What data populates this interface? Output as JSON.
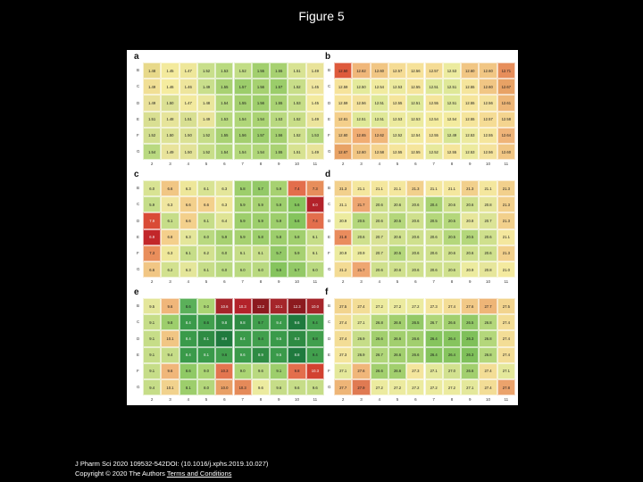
{
  "slide": {
    "title": "Figure 5",
    "citation": "J Pharm Sci 2020 109532-542DOI: (10.1016/j.xphs.2019.10.027)",
    "copyright": "Copyright © 2020 The Authors",
    "terms_link": "Terms and Conditions"
  },
  "chart_data": [
    {
      "type": "heatmap",
      "panel": "a",
      "rows": [
        "B",
        "C",
        "D",
        "E",
        "F",
        "G"
      ],
      "columns": [
        "2",
        "3",
        "4",
        "5",
        "6",
        "7",
        "8",
        "9",
        "10",
        "11"
      ],
      "values": [
        [
          "1.48",
          "1.45",
          "1.47",
          "1.52",
          "1.53",
          "1.52",
          "1.55",
          "1.55",
          "1.51",
          "1.49"
        ],
        [
          "1.49",
          "1.46",
          "1.46",
          "1.49",
          "1.55",
          "1.57",
          "1.56",
          "1.57",
          "1.52",
          "1.45"
        ],
        [
          "1.49",
          "1.50",
          "1.47",
          "1.48",
          "1.54",
          "1.55",
          "1.56",
          "1.55",
          "1.53",
          "1.45"
        ],
        [
          "1.51",
          "1.48",
          "1.51",
          "1.49",
          "1.53",
          "1.54",
          "1.54",
          "1.53",
          "1.52",
          "1.49"
        ],
        [
          "1.52",
          "1.50",
          "1.50",
          "1.52",
          "1.55",
          "1.56",
          "1.57",
          "1.56",
          "1.52",
          "1.53"
        ],
        [
          "1.54",
          "1.49",
          "1.50",
          "1.52",
          "1.54",
          "1.54",
          "1.54",
          "1.55",
          "1.51",
          "1.49"
        ]
      ],
      "colors": [
        [
          "#e8d98a",
          "#f3ea9d",
          "#eee79a",
          "#c8df8b",
          "#b9da7f",
          "#c2dd86",
          "#a2cf6e",
          "#a7d171",
          "#d8e393",
          "#e9e39a"
        ],
        [
          "#f1df95",
          "#f5ec9f",
          "#eee59c",
          "#c9df8c",
          "#a8d172",
          "#9ccd6b",
          "#a6d171",
          "#9bcd6a",
          "#c8de89",
          "#f0e6a0"
        ],
        [
          "#e9e19a",
          "#dbe094",
          "#f2e99e",
          "#e9e69c",
          "#b6d87d",
          "#a4cf6f",
          "#9fce6c",
          "#a9d273",
          "#c6dd87",
          "#f3ea9f"
        ],
        [
          "#d9df92",
          "#e6e49a",
          "#d8df92",
          "#e9e49b",
          "#b8d97f",
          "#b0d679",
          "#aad373",
          "#b9d980",
          "#c9de88",
          "#ebe49c"
        ],
        [
          "#d2de8e",
          "#dde295",
          "#dbe194",
          "#c6dd88",
          "#a9d273",
          "#a4cf6f",
          "#9ccd6b",
          "#a5d070",
          "#cfe08d",
          "#b8d97f"
        ],
        [
          "#b9d980",
          "#e8e39b",
          "#e2e298",
          "#c8de89",
          "#b2d77b",
          "#b4d87c",
          "#b0d679",
          "#a9d273",
          "#d7e291",
          "#e8e39a"
        ]
      ]
    },
    {
      "type": "heatmap",
      "panel": "b",
      "rows": [
        "B",
        "C",
        "D",
        "E",
        "F",
        "G"
      ],
      "columns": [
        "2",
        "3",
        "4",
        "5",
        "6",
        "7",
        "8",
        "9",
        "10",
        "11"
      ],
      "values": [
        [
          "12.50",
          "12.62",
          "12.60",
          "12.57",
          "12.56",
          "12.57",
          "12.53",
          "12.60",
          "12.60",
          "12.71"
        ],
        [
          "12.59",
          "12.50",
          "12.54",
          "12.53",
          "12.55",
          "12.51",
          "12.51",
          "12.55",
          "12.60",
          "12.67"
        ],
        [
          "12.59",
          "12.56",
          "12.51",
          "12.55",
          "12.51",
          "12.55",
          "12.51",
          "12.55",
          "12.56",
          "12.61"
        ],
        [
          "12.61",
          "12.51",
          "12.51",
          "12.53",
          "12.53",
          "12.54",
          "12.54",
          "12.55",
          "12.57",
          "12.58"
        ],
        [
          "12.60",
          "12.65",
          "12.62",
          "12.52",
          "12.54",
          "12.55",
          "12.49",
          "12.53",
          "12.55",
          "12.64"
        ],
        [
          "12.67",
          "12.60",
          "12.58",
          "12.55",
          "12.55",
          "12.52",
          "12.55",
          "12.53",
          "12.56",
          "12.60"
        ]
      ],
      "colors": [
        [
          "#de5a3c",
          "#f0b77a",
          "#f1c684",
          "#f5dc95",
          "#f6e29a",
          "#f5dc95",
          "#eceb9f",
          "#f1c684",
          "#f1c684",
          "#e78e5b"
        ],
        [
          "#f6e39b",
          "#e4ea9b",
          "#f1eb9f",
          "#ecea9e",
          "#f5e59c",
          "#dfe898",
          "#dfe898",
          "#f5e59c",
          "#f1c684",
          "#e8a265"
        ],
        [
          "#f6e39b",
          "#f4e29c",
          "#dfe898",
          "#f5e59c",
          "#dfe898",
          "#f5e59c",
          "#dfe898",
          "#f5e59c",
          "#f4e29c",
          "#eeb677"
        ],
        [
          "#f4cf8b",
          "#dfe898",
          "#dfe898",
          "#ecea9e",
          "#ecea9e",
          "#f3eb9f",
          "#f3eb9f",
          "#f5e59c",
          "#f5dc95",
          "#f4d48f"
        ],
        [
          "#f1c684",
          "#f1ad73",
          "#f0b77a",
          "#e7e99c",
          "#f3eb9f",
          "#f5e59c",
          "#d7e593",
          "#ecea9e",
          "#f5e59c",
          "#efb479"
        ],
        [
          "#e8a265",
          "#f1c684",
          "#f4d48f",
          "#f5e59c",
          "#f5e59c",
          "#e7e99c",
          "#f5e59c",
          "#ecea9e",
          "#f4e29c",
          "#f1c684"
        ]
      ]
    },
    {
      "type": "heatmap",
      "panel": "c",
      "rows": [
        "B",
        "C",
        "D",
        "E",
        "F",
        "G"
      ],
      "columns": [
        "2",
        "3",
        "4",
        "5",
        "6",
        "7",
        "8",
        "9",
        "10",
        "11"
      ],
      "values": [
        [
          "6.0",
          "6.6",
          "6.3",
          "6.1",
          "6.3",
          "5.8",
          "5.7",
          "5.9",
          "7.4",
          "7.3"
        ],
        [
          "5.9",
          "6.3",
          "6.6",
          "6.6",
          "6.3",
          "5.9",
          "5.9",
          "5.9",
          "5.6",
          "8.0"
        ],
        [
          "7.9",
          "6.1",
          "6.6",
          "6.1",
          "6.4",
          "5.9",
          "5.9",
          "5.9",
          "5.6",
          "7.4"
        ],
        [
          "6.9",
          "6.8",
          "6.3",
          "6.0",
          "5.9",
          "5.9",
          "5.8",
          "5.8",
          "5.8",
          "6.1"
        ],
        [
          "7.3",
          "6.3",
          "6.1",
          "6.2",
          "6.0",
          "6.1",
          "6.1",
          "5.7",
          "5.9",
          "6.1"
        ],
        [
          "6.6",
          "6.2",
          "6.3",
          "6.1",
          "6.0",
          "6.0",
          "6.0",
          "5.5",
          "5.7",
          "6.0"
        ]
      ],
      "colors": [
        [
          "#d8e393",
          "#f1c684",
          "#eee79a",
          "#d8e393",
          "#e4e69a",
          "#9dce6c",
          "#93c967",
          "#a7d171",
          "#e36e4c",
          "#e78e5b"
        ],
        [
          "#c5dd88",
          "#f0e69f",
          "#f3d08c",
          "#f3d08c",
          "#eee79a",
          "#a7d171",
          "#a7d171",
          "#9dce6c",
          "#85c45d",
          "#b3222a"
        ],
        [
          "#d94b36",
          "#c6dd88",
          "#f3d08c",
          "#c6dd88",
          "#dfe495",
          "#9dce6c",
          "#9dce6c",
          "#9dce6c",
          "#85c45d",
          "#e36e4c"
        ],
        [
          "#c2272a",
          "#f4cf8b",
          "#e4e69a",
          "#b9d980",
          "#a7d171",
          "#a7d171",
          "#9dce6c",
          "#9dce6c",
          "#a1cf6e",
          "#c6dd88"
        ],
        [
          "#e98e5b",
          "#eee79a",
          "#c6dd88",
          "#d2e18f",
          "#b9d980",
          "#c6dd88",
          "#c6dd88",
          "#93c967",
          "#a7d171",
          "#d2e18f"
        ],
        [
          "#f1c684",
          "#d2e18f",
          "#e4e69a",
          "#c6dd88",
          "#b9d980",
          "#b9d980",
          "#b9d980",
          "#86c45e",
          "#93c967",
          "#b9d980"
        ]
      ]
    },
    {
      "type": "heatmap",
      "panel": "d",
      "rows": [
        "B",
        "C",
        "D",
        "E",
        "F",
        "G"
      ],
      "columns": [
        "2",
        "3",
        "4",
        "5",
        "6",
        "7",
        "8",
        "9",
        "10",
        "11"
      ],
      "values": [
        [
          "21.3",
          "21.1",
          "21.1",
          "21.1",
          "21.3",
          "21.1",
          "21.1",
          "21.3",
          "21.1",
          "21.3"
        ],
        [
          "21.1",
          "21.7",
          "20.6",
          "20.6",
          "20.6",
          "20.4",
          "20.6",
          "20.6",
          "20.8",
          "21.3"
        ],
        [
          "20.9",
          "20.5",
          "20.6",
          "20.5",
          "20.6",
          "20.5",
          "20.5",
          "20.8",
          "20.7",
          "21.3"
        ],
        [
          "21.8",
          "20.6",
          "20.7",
          "20.6",
          "20.6",
          "20.6",
          "20.5",
          "20.5",
          "20.6",
          "21.1"
        ],
        [
          "20.9",
          "20.9",
          "20.7",
          "20.5",
          "20.6",
          "20.6",
          "20.6",
          "20.6",
          "20.6",
          "21.3"
        ],
        [
          "21.2",
          "21.7",
          "20.6",
          "20.6",
          "20.6",
          "20.6",
          "20.6",
          "20.9",
          "20.8",
          "21.0"
        ]
      ],
      "colors": [
        [
          "#f2d08c",
          "#f4e79e",
          "#f4e79e",
          "#f4e79e",
          "#f2d08c",
          "#f4e79e",
          "#f4e79e",
          "#f2d08c",
          "#f4e79e",
          "#f2d08c"
        ],
        [
          "#f4e79e",
          "#eea671",
          "#cfe08d",
          "#cfe08d",
          "#cfe08d",
          "#a9d273",
          "#cfe08d",
          "#cfe08d",
          "#e6e69b",
          "#f2d08c"
        ],
        [
          "#eceb9f",
          "#b4d77b",
          "#cfe08d",
          "#b4d77b",
          "#cfe08d",
          "#b4d77b",
          "#b4d77b",
          "#e6e69b",
          "#dbe396",
          "#f2d08c"
        ],
        [
          "#e98c5d",
          "#cfe08d",
          "#d9e294",
          "#cfe08d",
          "#cfe08d",
          "#cfe08d",
          "#b4d77b",
          "#b4d77b",
          "#cfe08d",
          "#f4e79e"
        ],
        [
          "#eceb9f",
          "#eceb9f",
          "#d9e294",
          "#b4d77b",
          "#cfe08d",
          "#cfe08d",
          "#cfe08d",
          "#cfe08d",
          "#cfe08d",
          "#f2d08c"
        ],
        [
          "#f3db94",
          "#eea671",
          "#cfe08d",
          "#cfe08d",
          "#cfe08d",
          "#cfe08d",
          "#cfe08d",
          "#eceb9f",
          "#e6e69b",
          "#f4ea9f"
        ]
      ]
    },
    {
      "type": "heatmap",
      "panel": "e",
      "rows": [
        "B",
        "C",
        "D",
        "E",
        "F",
        "G"
      ],
      "columns": [
        "2",
        "3",
        "4",
        "5",
        "6",
        "7",
        "8",
        "9",
        "10",
        "11"
      ],
      "values": [
        [
          "9.5",
          "9.6",
          "8.6",
          "9.0",
          "10.6",
          "10.3",
          "12.2",
          "10.1",
          "12.3",
          "10.0"
        ],
        [
          "9.1",
          "9.8",
          "8.4",
          "8.6",
          "9.8",
          "9.8",
          "9.7",
          "9.4",
          "9.6",
          "9.4"
        ],
        [
          "9.1",
          "10.1",
          "8.4",
          "8.1",
          "8.9",
          "8.4",
          "9.4",
          "9.5",
          "8.3",
          "8.8"
        ],
        [
          "9.1",
          "9.4",
          "8.4",
          "8.1",
          "9.6",
          "9.6",
          "8.9",
          "9.5",
          "8.8",
          "9.4"
        ],
        [
          "9.1",
          "9.6",
          "8.6",
          "9.0",
          "10.3",
          "9.0",
          "9.6",
          "9.1",
          "9.8",
          "10.3"
        ],
        [
          "9.4",
          "10.1",
          "8.1",
          "8.0",
          "10.0",
          "10.3",
          "9.6",
          "9.6",
          "9.6",
          "9.6"
        ]
      ],
      "colors": [
        [
          "#e4e69a",
          "#f0b67a",
          "#5bb05a",
          "#aad473",
          "#a5252a",
          "#b3222a",
          "#8c1a1f",
          "#a5252a",
          "#8c1a1f",
          "#a5252a"
        ],
        [
          "#c6dd88",
          "#9dce6c",
          "#3a9a4a",
          "#419f4d",
          "#2e8b43",
          "#2e8b43",
          "#419f4d",
          "#3a9a4a",
          "#1f7a3e",
          "#419f4d"
        ],
        [
          "#c6dd88",
          "#f1c684",
          "#3a9a4a",
          "#2e8b43",
          "#1f7a3e",
          "#3a9a4a",
          "#419f4d",
          "#3a9a4a",
          "#2e8b43",
          "#419f4d"
        ],
        [
          "#c6dd88",
          "#c6dd88",
          "#3a9a4a",
          "#3a9a4a",
          "#419f4d",
          "#3a9a4a",
          "#2e8b43",
          "#3a9a4a",
          "#1f7a3e",
          "#419f4d"
        ],
        [
          "#c6dd88",
          "#f0b67a",
          "#8fc965",
          "#aad473",
          "#e3754f",
          "#aad473",
          "#b9d980",
          "#9dce6c",
          "#e36e4c",
          "#d24130"
        ],
        [
          "#c6dd88",
          "#f1d28d",
          "#9dce6c",
          "#b4d77b",
          "#e9a066",
          "#e58a59",
          "#eceb9f",
          "#c6dd88",
          "#c6dd88",
          "#c6dd88"
        ]
      ]
    },
    {
      "type": "heatmap",
      "panel": "f",
      "rows": [
        "B",
        "C",
        "D",
        "E",
        "F",
        "G"
      ],
      "columns": [
        "2",
        "3",
        "4",
        "5",
        "6",
        "7",
        "8",
        "9",
        "10",
        "11"
      ],
      "values": [
        [
          "27.5",
          "27.4",
          "27.2",
          "27.2",
          "27.2",
          "27.3",
          "27.4",
          "27.6",
          "27.7",
          "27.5"
        ],
        [
          "27.4",
          "27.1",
          "26.8",
          "26.6",
          "26.5",
          "26.7",
          "26.6",
          "26.5",
          "26.8",
          "27.4"
        ],
        [
          "27.4",
          "26.9",
          "26.6",
          "26.6",
          "26.6",
          "26.4",
          "26.4",
          "26.3",
          "26.8",
          "27.4"
        ],
        [
          "27.3",
          "26.9",
          "26.7",
          "26.6",
          "26.6",
          "26.4",
          "26.4",
          "26.3",
          "26.8",
          "27.4"
        ],
        [
          "27.1",
          "27.6",
          "26.6",
          "26.6",
          "27.3",
          "27.1",
          "27.0",
          "26.6",
          "27.4",
          "27.1"
        ],
        [
          "27.7",
          "27.9",
          "27.2",
          "27.2",
          "27.2",
          "27.2",
          "27.2",
          "27.1",
          "27.4",
          "27.8"
        ]
      ],
      "colors": [
        [
          "#f2d48e",
          "#f3dd96",
          "#eceb9f",
          "#eceb9f",
          "#eceb9f",
          "#f4e59d",
          "#f3dd96",
          "#f2c987",
          "#eeb577",
          "#f2d48e"
        ],
        [
          "#f3dd96",
          "#e4e89b",
          "#b4d77b",
          "#a2cf6e",
          "#93c967",
          "#b0d679",
          "#a2cf6e",
          "#93c967",
          "#b4d77b",
          "#f3dd96"
        ],
        [
          "#f3dd96",
          "#c6dd88",
          "#a2cf6e",
          "#a2cf6e",
          "#a2cf6e",
          "#86c45e",
          "#86c45e",
          "#7fc05a",
          "#b4d77b",
          "#f3dd96"
        ],
        [
          "#f4e59d",
          "#c6dd88",
          "#b0d679",
          "#a2cf6e",
          "#a2cf6e",
          "#86c45e",
          "#86c45e",
          "#7fc05a",
          "#b4d77b",
          "#f3dd96"
        ],
        [
          "#e4e89b",
          "#f0b67a",
          "#a2cf6e",
          "#a2cf6e",
          "#f4e59d",
          "#e4e89b",
          "#d2e18f",
          "#a2cf6e",
          "#f3dd96",
          "#e4e89b"
        ],
        [
          "#eeb577",
          "#e07a52",
          "#eceb9f",
          "#eceb9f",
          "#eceb9f",
          "#eceb9f",
          "#eceb9f",
          "#e4e89b",
          "#f3dd96",
          "#eba36c"
        ]
      ]
    }
  ]
}
